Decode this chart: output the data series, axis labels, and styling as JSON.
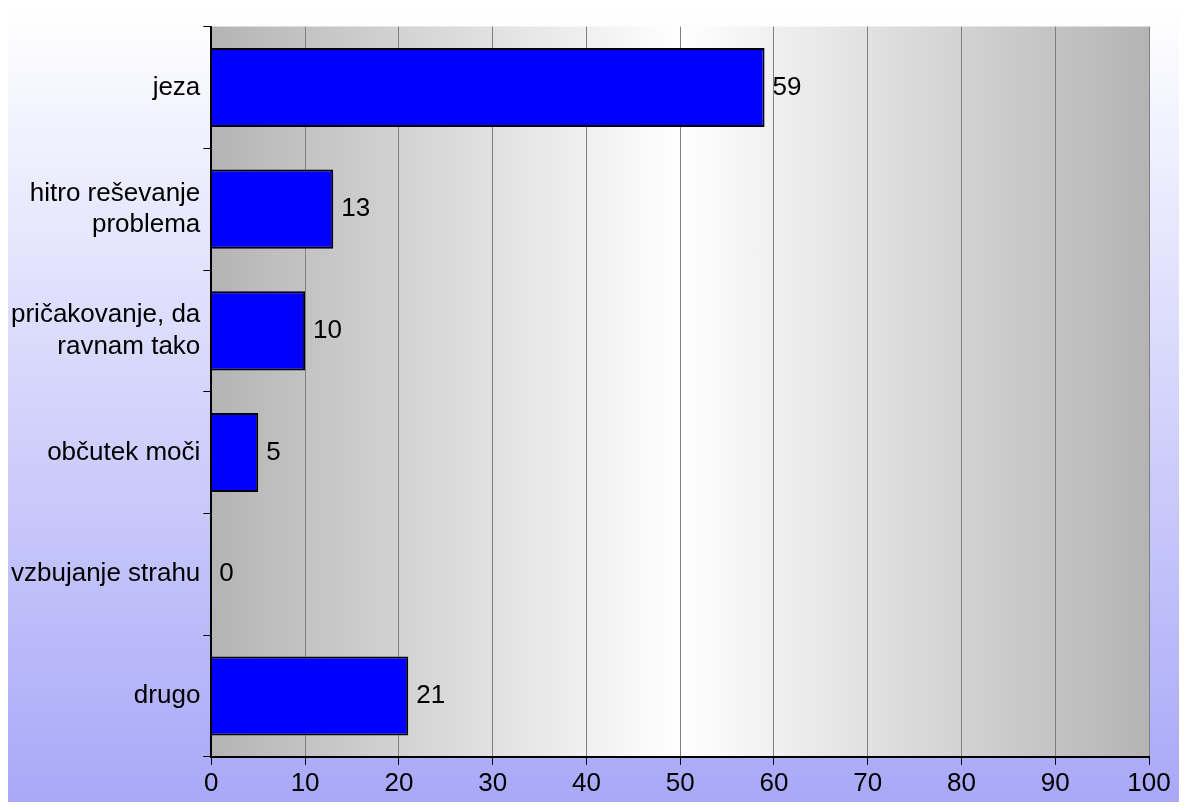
{
  "chart_data": {
    "type": "bar",
    "orientation": "horizontal",
    "categories": [
      "jeza",
      "hitro reševanje problema",
      "pričakovanje, da ravnam tako",
      "občutek moči",
      "vzbujanje strahu",
      "drugo"
    ],
    "values": [
      59,
      13,
      10,
      5,
      0,
      21
    ],
    "color": "#0000ff",
    "xlim": [
      0,
      100
    ],
    "xticks": [
      0,
      10,
      20,
      30,
      40,
      50,
      60,
      70,
      80,
      90,
      100
    ],
    "grid": "x",
    "legend": false,
    "data_labels": true
  }
}
